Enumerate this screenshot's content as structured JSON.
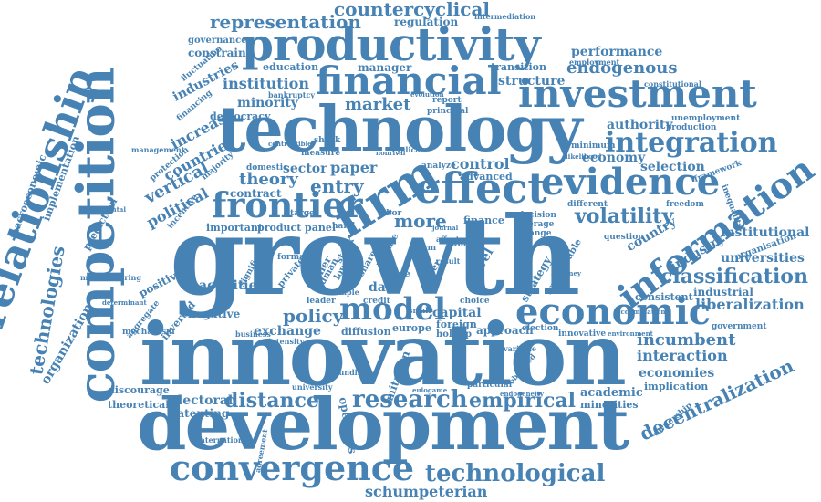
{
  "color": "#4682b4",
  "words": {
    "growth": "growth",
    "innovation": "innovation",
    "development": "development",
    "competition": "competition",
    "technology": "technology",
    "productivity": "productivity",
    "relationship": "relationship",
    "financial": "financial",
    "investment": "investment",
    "convergence": "convergence",
    "evidence": "evidence",
    "frontier": "frontier",
    "effect": "effect",
    "economic": "economic",
    "information": "information",
    "integration": "integration",
    "model": "model",
    "research": "research",
    "technological": "technological",
    "firm": "firm",
    "representation": "representation",
    "countercyclical": "countercyclical",
    "classification": "classification",
    "volatility": "volatility",
    "decentralization": "decentralization",
    "technologies": "technologies",
    "distance": "distance",
    "empirical": "empirical",
    "incumbent": "incumbent",
    "schumpeterian": "schumpeterian",
    "endogenous": "endogenous",
    "performance": "performance",
    "institution": "institution",
    "market": "market",
    "policy": "policy",
    "entry": "entry",
    "more": "more",
    "theory": "theory",
    "paper": "paper",
    "sector": "sector",
    "control": "control",
    "economy": "economy",
    "authority": "authority",
    "selection": "selection",
    "country": "country",
    "industry": "industry",
    "universities": "universities",
    "liberalization": "liberalization",
    "institutional": "institutional",
    "interaction": "interaction",
    "economies": "economies",
    "implication": "implication",
    "academic": "academic",
    "minorities": "minorities",
    "electoral": "electoral",
    "patenting": "patenting",
    "exchange": "exchange",
    "capital": "capital",
    "increase": "increase",
    "vertical": "vertical",
    "political": "political",
    "minority": "minority",
    "democracy": "democracy",
    "industries": "industries",
    "manager": "manager",
    "education": "education",
    "regulation": "regulation",
    "governance": "governance",
    "constraint": "constraint",
    "structure": "structure",
    "transition": "transition",
    "countries": "countries",
    "activities": "activities",
    "negative": "negative",
    "positive": "positive",
    "organization": "organization",
    "macroeconomic": "macroeconomic",
    "implementation": "implementation",
    "prediction": "prediction",
    "theoretical": "theoretical",
    "discourage": "discourage",
    "contract": "contract",
    "important": "important",
    "product": "product",
    "panel": "panel",
    "advanced": "advanced",
    "finance": "finance",
    "industrial": "industrial",
    "consistent": "consistent",
    "strategy": "strategy",
    "transferable": "transferable",
    "level": "level",
    "approach": "approach",
    "europe": "europe",
    "diffusion": "diffusion",
    "openness": "openness",
    "imitation": "imitation",
    "data": "data",
    "higher": "higher",
    "foreign": "foreign",
    "holdup": "holdup",
    "intermediation": "intermediation",
    "principal": "principal",
    "report": "report",
    "unemployment": "unemployment",
    "production": "production",
    "framework": "framework",
    "organisation": "organisation",
    "question": "question",
    "government": "government",
    "ownership": "ownership",
    "minimum": "minimum",
    "choice": "choice",
    "innovative": "innovative",
    "particular": "particular",
    "credit": "credit",
    "analyze": "analyze",
    "decision": "decision",
    "average": "average",
    "change": "change",
    "different": "different",
    "freedom": "freedom",
    "inequality": "inequality",
    "bankruptcy": "bankruptcy",
    "domestic": "domestic",
    "management": "management",
    "protection": "protection",
    "incentive": "incentive",
    "majority": "majority",
    "fluctuation": "fluctuation",
    "financing": "financing",
    "business": "business",
    "mechanism": "mechanism",
    "aggregate": "aggregate",
    "inverted": "inverted",
    "significant": "significant",
    "lower": "lower",
    "stock": "stock",
    "share": "share",
    "rate": "rate",
    "trade": "trade",
    "role": "role",
    "term": "term",
    "world": "world",
    "private": "private",
    "human": "human",
    "labor": "labor",
    "cyclical": "cyclical",
    "shock": "shock",
    "target": "target",
    "hand": "hand",
    "formal": "formal",
    "leader": "leader",
    "closer": "closer",
    "small": "small",
    "election": "election",
    "intensity": "intensity",
    "funding": "funding",
    "eulogame": "eulogame",
    "international": "international",
    "agreement": "agreement",
    "university": "university",
    "employment": "employment",
    "constitutional": "constitutional",
    "likelihood": "likelihood",
    "simple": "simple",
    "evolution": "evolution",
    "affect": "affect",
    "result": "result",
    "journal": "journal",
    "variable": "variable",
    "observed": "observed",
    "fundamental": "fundamental",
    "measure": "measure",
    "manufacturing": "manufacturing",
    "contractible": "contractible",
    "determinant": "determinant",
    "nonrival": "nonrival",
    "attorney": "attorney",
    "endogeneity": "endogeneity",
    "accumulation": "accumulation",
    "environment": "environment"
  }
}
